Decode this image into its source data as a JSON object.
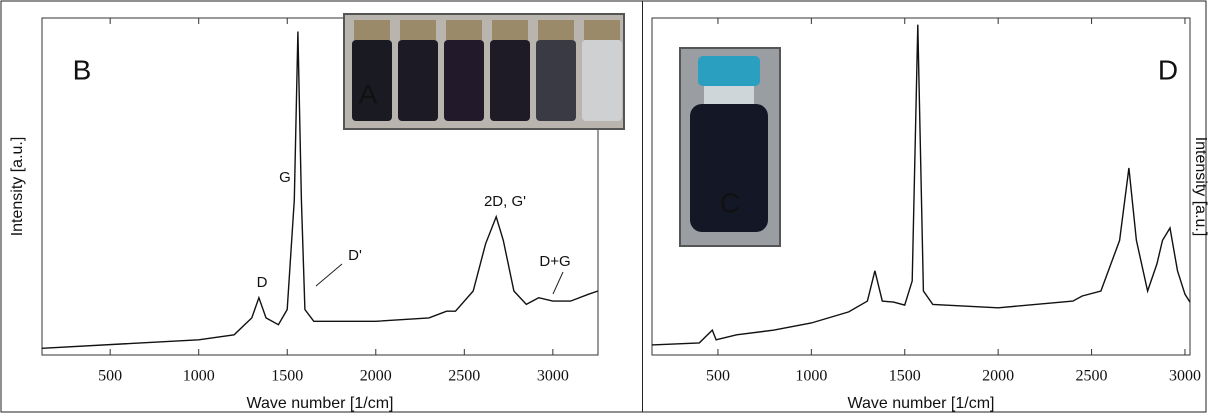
{
  "chart_data": [
    {
      "type": "line",
      "xlabel": "Wave number [1/cm]",
      "ylabel": "Intensity [a.u.]",
      "xlim": [
        115,
        3255
      ],
      "ylim": [
        0,
        100
      ],
      "xticks": [
        500,
        1000,
        1500,
        2000,
        2500,
        3000
      ],
      "annotations": [
        "B",
        "A",
        "G",
        "D",
        "D'",
        "2D, G'",
        "D+G"
      ],
      "x": [
        115,
        1000,
        1200,
        1300,
        1340,
        1380,
        1450,
        1500,
        1540,
        1560,
        1580,
        1600,
        1650,
        2000,
        2300,
        2400,
        2450,
        2550,
        2620,
        2680,
        2720,
        2780,
        2850,
        2920,
        3000,
        3100,
        3200,
        3255
      ],
      "series": [
        {
          "color": "#111111",
          "values": [
            2,
            4.5,
            6,
            11,
            17,
            11,
            9,
            13.5,
            46,
            96,
            46,
            13.5,
            10,
            10,
            11,
            13,
            13,
            19,
            33,
            41,
            34,
            19,
            15,
            17,
            16,
            16,
            18,
            19
          ]
        }
      ]
    },
    {
      "type": "line",
      "xlabel": "Wave number [1/cm]",
      "ylabel": "Intensity [a.u.]",
      "xlim": [
        147,
        3027
      ],
      "ylim": [
        0,
        100
      ],
      "xticks": [
        500,
        1000,
        1500,
        2000,
        2500,
        3000
      ],
      "annotations": [
        "D",
        "C"
      ],
      "x": [
        147,
        400,
        470,
        490,
        600,
        800,
        1000,
        1200,
        1300,
        1340,
        1380,
        1440,
        1500,
        1540,
        1570,
        1600,
        1650,
        2000,
        2400,
        2450,
        2550,
        2650,
        2700,
        2740,
        2800,
        2850,
        2880,
        2920,
        2960,
        3000,
        3027
      ],
      "series": [
        {
          "color": "#111111",
          "values": [
            3,
            3.6,
            7.4,
            4.5,
            6,
            7.4,
            9.5,
            12.8,
            16,
            25,
            16,
            15.7,
            14.8,
            22,
            98,
            19,
            15,
            14,
            16,
            17.5,
            19,
            34,
            55.5,
            34,
            19,
            27,
            34,
            37.7,
            25,
            18,
            15.7
          ]
        }
      ]
    }
  ]
}
